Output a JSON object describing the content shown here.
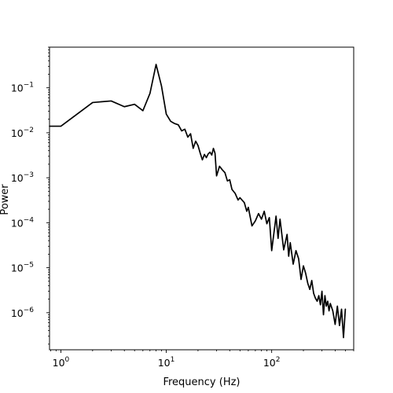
{
  "chart_data": {
    "type": "line",
    "title": "",
    "xlabel": "Frequency (Hz)",
    "ylabel": "Power",
    "x_scale": "log",
    "y_scale": "log",
    "xlim": [
      0.78,
      600
    ],
    "ylim": [
      1.5e-07,
      0.8
    ],
    "grid": false,
    "legend": "none",
    "line_color": "#000000",
    "x_ticks": [
      1,
      10,
      100
    ],
    "x_tick_labels": [
      "10",
      "10",
      "10"
    ],
    "x_tick_exponents": [
      "0",
      "1",
      "2"
    ],
    "y_ticks": [
      1e-06,
      1e-05,
      0.0001,
      0.001,
      0.01,
      0.1
    ],
    "y_tick_labels": [
      "10",
      "10",
      "10",
      "10",
      "10",
      "10"
    ],
    "y_tick_exponents": [
      "−6",
      "−5",
      "−4",
      "−3",
      "−2",
      "−1"
    ],
    "series": [
      {
        "x": [
          0.78,
          1,
          2,
          3,
          4,
          5,
          6,
          7,
          8,
          9,
          10,
          11,
          12,
          13,
          14,
          15,
          16,
          17,
          18,
          19,
          20,
          21,
          22,
          23,
          24,
          25,
          26,
          27,
          28,
          29,
          30,
          32,
          34,
          36,
          38,
          40,
          42,
          45,
          48,
          50,
          55,
          58,
          60,
          65,
          70,
          75,
          80,
          85,
          90,
          95,
          100,
          110,
          115,
          120,
          130,
          140,
          145,
          150,
          160,
          170,
          180,
          190,
          200,
          210,
          220,
          230,
          240,
          250,
          260,
          270,
          280,
          290,
          300,
          310,
          320,
          330,
          340,
          350,
          360,
          380,
          400,
          420,
          440,
          460,
          480,
          500
        ],
        "y": [
          0.014,
          0.014,
          0.047,
          0.051,
          0.038,
          0.043,
          0.031,
          0.075,
          0.33,
          0.11,
          0.026,
          0.018,
          0.016,
          0.015,
          0.011,
          0.012,
          0.008,
          0.0095,
          0.0045,
          0.0065,
          0.0052,
          0.0035,
          0.0025,
          0.0033,
          0.0028,
          0.0034,
          0.0037,
          0.0032,
          0.0045,
          0.0035,
          0.0011,
          0.0018,
          0.0015,
          0.0013,
          0.00085,
          0.0009,
          0.00055,
          0.00045,
          0.00032,
          0.00036,
          0.00028,
          0.00018,
          0.00022,
          8.5e-05,
          0.00011,
          0.00016,
          0.00012,
          0.00018,
          9.5e-05,
          0.00013,
          2.4e-05,
          0.00014,
          4.5e-05,
          0.00012,
          2.5e-05,
          5.5e-05,
          1.8e-05,
          3.6e-05,
          1.2e-05,
          2.4e-05,
          1.6e-05,
          5.5e-06,
          1.1e-05,
          7.5e-06,
          4.5e-06,
          3.3e-06,
          5.2e-06,
          2.7e-06,
          2.1e-06,
          1.8e-06,
          2.4e-06,
          1.5e-06,
          3e-06,
          9e-07,
          2.4e-06,
          1.4e-06,
          1.8e-06,
          1.1e-06,
          1.6e-06,
          1.1e-06,
          5.5e-07,
          1.4e-06,
          5.2e-07,
          1.2e-06,
          2.8e-07,
          1.2e-06
        ]
      }
    ]
  }
}
